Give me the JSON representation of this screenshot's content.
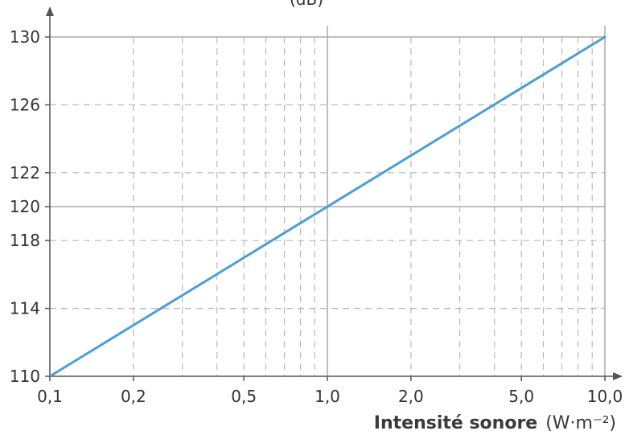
{
  "chart_data": {
    "type": "line",
    "xscale": "log",
    "xlim": [
      0.1,
      10.0
    ],
    "ylim": [
      110,
      130
    ],
    "x_ticks": [
      {
        "value": 0.1,
        "label": "0,1"
      },
      {
        "value": 0.2,
        "label": "0,2"
      },
      {
        "value": 0.5,
        "label": "0,5"
      },
      {
        "value": 1.0,
        "label": "1,0"
      },
      {
        "value": 2.0,
        "label": "2,0"
      },
      {
        "value": 5.0,
        "label": "5,0"
      },
      {
        "value": 10.0,
        "label": "10,0"
      }
    ],
    "y_ticks": [
      {
        "value": 110,
        "label": "110"
      },
      {
        "value": 114,
        "label": "114"
      },
      {
        "value": 118,
        "label": "118"
      },
      {
        "value": 120,
        "label": "120"
      },
      {
        "value": 122,
        "label": "122"
      },
      {
        "value": 126,
        "label": "126"
      },
      {
        "value": 130,
        "label": "130"
      }
    ],
    "minor_x_gridlines": [
      0.2,
      0.3,
      0.4,
      0.5,
      0.6,
      0.7,
      0.8,
      0.9,
      2,
      3,
      4,
      5,
      6,
      7,
      8,
      9
    ],
    "major_x_gridlines": [
      1.0,
      10.0
    ],
    "minor_y_gridlines": [
      114,
      118,
      122,
      126
    ],
    "major_y_gridlines": [
      120,
      130
    ],
    "grid": true,
    "series": [
      {
        "x": [
          0.1,
          1.0,
          10.0
        ],
        "y": [
          110,
          120,
          130
        ],
        "color": "#4a9fd5"
      }
    ],
    "xlabel_bold": "Intensité sonore",
    "xlabel_unit": "(W·m⁻²)",
    "ylabel_partial": "(dB)"
  }
}
